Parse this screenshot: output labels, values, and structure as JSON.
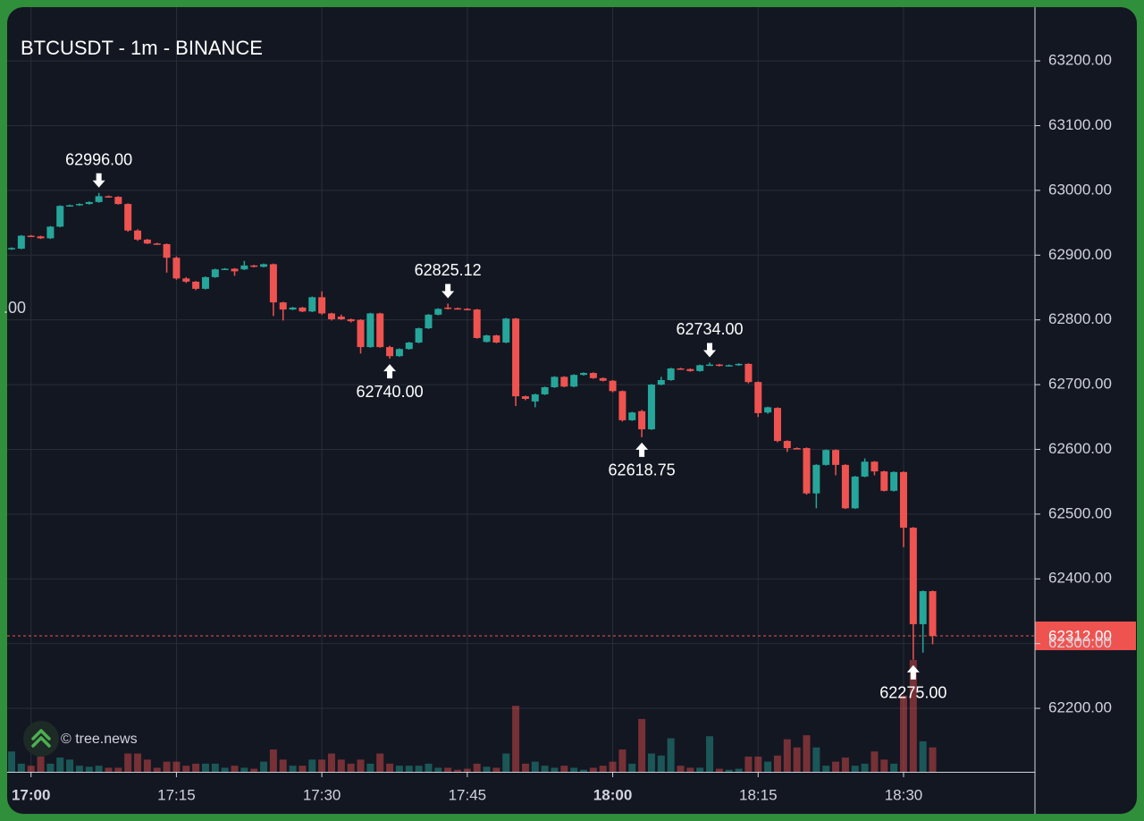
{
  "chart_data": {
    "type": "candlestick",
    "title": "BTCUSDT - 1m - BINANCE",
    "watermark": "© tree.news",
    "clipped_label": ".00",
    "x": [
      "16:58",
      "16:59",
      "17:00",
      "17:01",
      "17:02",
      "17:03",
      "17:04",
      "17:05",
      "17:06",
      "17:07",
      "17:08",
      "17:09",
      "17:10",
      "17:11",
      "17:12",
      "17:13",
      "17:14",
      "17:15",
      "17:16",
      "17:17",
      "17:18",
      "17:19",
      "17:20",
      "17:21",
      "17:22",
      "17:23",
      "17:24",
      "17:25",
      "17:26",
      "17:27",
      "17:28",
      "17:29",
      "17:30",
      "17:31",
      "17:32",
      "17:33",
      "17:34",
      "17:35",
      "17:36",
      "17:37",
      "17:38",
      "17:39",
      "17:40",
      "17:41",
      "17:42",
      "17:43",
      "17:44",
      "17:45",
      "17:46",
      "17:47",
      "17:48",
      "17:49",
      "17:50",
      "17:51",
      "17:52",
      "17:53",
      "17:54",
      "17:55",
      "17:56",
      "17:57",
      "17:58",
      "17:59",
      "18:00",
      "18:01",
      "18:02",
      "18:03",
      "18:04",
      "18:05",
      "18:06",
      "18:07",
      "18:08",
      "18:09",
      "18:10",
      "18:11",
      "18:12",
      "18:13",
      "18:14",
      "18:15",
      "18:16",
      "18:17",
      "18:18",
      "18:19",
      "18:20",
      "18:21",
      "18:22",
      "18:23",
      "18:24",
      "18:25",
      "18:26",
      "18:27",
      "18:28",
      "18:29",
      "18:30",
      "18:31",
      "18:32",
      "18:33"
    ],
    "open": [
      62909,
      62910,
      62930,
      62929,
      62926,
      62944,
      62976,
      62977,
      62979,
      62982,
      62991,
      62990,
      62979,
      62938,
      62924,
      62918,
      62917,
      62896,
      62864,
      62859,
      62848,
      62866,
      62878,
      62879,
      62878,
      62884,
      62882,
      62886,
      62827,
      62816,
      62819,
      62813,
      62835,
      62810,
      62805,
      62801,
      62800,
      62758,
      62810,
      62758,
      62744,
      62755,
      62765,
      62787,
      62808,
      62819,
      62818,
      62817,
      62816,
      62766,
      62776,
      62765,
      62802,
      62682,
      62674,
      62685,
      62696,
      62712,
      62697,
      62715,
      62718,
      62710,
      62706,
      62690,
      62645,
      62659,
      62631,
      62700,
      62707,
      62725,
      62724,
      62721,
      62730,
      62731,
      62729,
      62730,
      62732,
      62704,
      62657,
      62664,
      62613,
      62602,
      62602,
      62532,
      62576,
      62599,
      62576,
      62509,
      62558,
      62581,
      62566,
      62536,
      62565,
      62479,
      62330,
      62381
    ],
    "high": [
      62912,
      62931,
      62931,
      62930,
      62945,
      62977,
      62978,
      62980,
      62983,
      62996,
      62992,
      62991,
      62980,
      62940,
      62925,
      62919,
      62918,
      62898,
      62866,
      62860,
      62867,
      62879,
      62880,
      62880,
      62891,
      62885,
      62887,
      62887,
      62828,
      62820,
      62820,
      62836,
      62844,
      62811,
      62808,
      62802,
      62801,
      62811,
      62811,
      62760,
      62756,
      62766,
      62788,
      62809,
      62818,
      62825.12,
      62819,
      62818,
      62817,
      62777,
      62777,
      62803,
      62803,
      62683,
      62686,
      62697,
      62713,
      62713,
      62716,
      62719,
      62719,
      62711,
      62707,
      62691,
      62658,
      62661,
      62701,
      62712,
      62726,
      62726,
      62725,
      62731,
      62734,
      62732,
      62731,
      62733,
      62733,
      62705,
      62666,
      62665,
      62614,
      62603,
      62603,
      62577,
      62600,
      62600,
      62577,
      62559,
      62586,
      62582,
      62567,
      62566,
      62566,
      62480,
      62382,
      62382
    ],
    "low": [
      62908,
      62909,
      62928,
      62925,
      62925,
      62943,
      62975,
      62976,
      62978,
      62981,
      62989,
      62978,
      62936,
      62922,
      62917,
      62916,
      62873,
      62862,
      62857,
      62846,
      62847,
      62865,
      62877,
      62868,
      62877,
      62881,
      62881,
      62806,
      62799,
      62815,
      62812,
      62812,
      62808,
      62799,
      62800,
      62796,
      62748,
      62757,
      62757,
      62740,
      62743,
      62754,
      62764,
      62786,
      62807,
      62816,
      62816,
      62815,
      62771,
      62765,
      62764,
      62764,
      62667,
      62676,
      62665,
      62684,
      62695,
      62696,
      62696,
      62714,
      62709,
      62705,
      62688,
      62643,
      62644,
      62618.75,
      62630,
      62699,
      62706,
      62723,
      62720,
      62720,
      62729,
      62728,
      62728,
      62729,
      62702,
      62650,
      62655,
      62611,
      62596,
      62600,
      62530,
      62509,
      62575,
      62560,
      62508,
      62508,
      62557,
      62560,
      62535,
      62535,
      62449,
      62275,
      62286,
      62299
    ],
    "close": [
      62911,
      62930,
      62929,
      62926,
      62944,
      62976,
      62977,
      62979,
      62982,
      62991,
      62990,
      62979,
      62938,
      62924,
      62918,
      62917,
      62896,
      62864,
      62859,
      62848,
      62866,
      62878,
      62879,
      62875,
      62884,
      62882,
      62886,
      62827,
      62816,
      62819,
      62813,
      62835,
      62810,
      62801,
      62801,
      62798,
      62758,
      62810,
      62758,
      62744,
      62755,
      62765,
      62787,
      62808,
      62817,
      62818,
      62817,
      62816,
      62772,
      62776,
      62765,
      62802,
      62682,
      62678,
      62685,
      62696,
      62712,
      62697,
      62715,
      62718,
      62710,
      62706,
      62690,
      62645,
      62657,
      62631,
      62700,
      62707,
      62725,
      62724,
      62721,
      62730,
      62731,
      62729,
      62730,
      62732,
      62704,
      62656,
      62665,
      62613,
      62602,
      62601,
      62532,
      62576,
      62599,
      62576,
      62509,
      62558,
      62581,
      62566,
      62536,
      62565,
      62479,
      62330,
      62381,
      62312
    ],
    "volume": [
      20,
      8,
      6,
      15,
      8,
      14,
      12,
      6,
      5,
      6,
      4,
      4,
      18,
      18,
      12,
      4,
      10,
      10,
      6,
      8,
      8,
      8,
      4,
      6,
      4,
      3,
      10,
      22,
      12,
      6,
      6,
      12,
      12,
      18,
      12,
      8,
      12,
      8,
      18,
      8,
      6,
      6,
      6,
      8,
      4,
      4,
      2,
      3,
      8,
      5,
      4,
      18,
      65,
      8,
      10,
      6,
      4,
      6,
      4,
      2,
      4,
      6,
      10,
      22,
      8,
      52,
      18,
      16,
      33,
      6,
      4,
      4,
      35,
      3,
      2,
      3,
      15,
      15,
      10,
      16,
      32,
      24,
      36,
      24,
      6,
      10,
      14,
      6,
      8,
      20,
      12,
      8,
      75,
      110,
      30,
      24
    ],
    "up_color": "#26a69a",
    "down_color": "#ef5350",
    "xlim": [
      "16:58",
      "18:43"
    ],
    "xticks": [
      "17:00",
      "17:15",
      "17:30",
      "17:45",
      "18:00",
      "18:15",
      "18:30"
    ],
    "xtick_bold": [
      true,
      false,
      false,
      false,
      true,
      false,
      false
    ],
    "ylim": [
      62102,
      63283
    ],
    "yticks": [
      {
        "value": 62200,
        "label": "62200.00"
      },
      {
        "value": 62300,
        "label": "62300.00"
      },
      {
        "value": 62400,
        "label": "62400.00"
      },
      {
        "value": 62500,
        "label": "62500.00"
      },
      {
        "value": 62600,
        "label": "62600.00"
      },
      {
        "value": 62700,
        "label": "62700.00"
      },
      {
        "value": 62800,
        "label": "62800.00"
      },
      {
        "value": 62900,
        "label": "62900.00"
      },
      {
        "value": 63000,
        "label": "63000.00"
      },
      {
        "value": 63100,
        "label": "63100.00"
      },
      {
        "value": 63200,
        "label": "63200.00"
      }
    ],
    "grid": true,
    "last_price": {
      "value": 62312,
      "label": "62312.00"
    },
    "annotations": [
      {
        "text": "62996.00",
        "value": 62996,
        "x": "17:07",
        "kind": "high"
      },
      {
        "text": "62740.00",
        "value": 62740,
        "x": "17:37",
        "kind": "low"
      },
      {
        "text": "62825.12",
        "value": 62825.12,
        "x": "17:43",
        "kind": "high"
      },
      {
        "text": "62618.75",
        "value": 62618.75,
        "x": "18:03",
        "kind": "low"
      },
      {
        "text": "62734.00",
        "value": 62734,
        "x": "18:10",
        "kind": "high"
      },
      {
        "text": "62275.00",
        "value": 62275,
        "x": "18:31",
        "kind": "low"
      }
    ]
  }
}
